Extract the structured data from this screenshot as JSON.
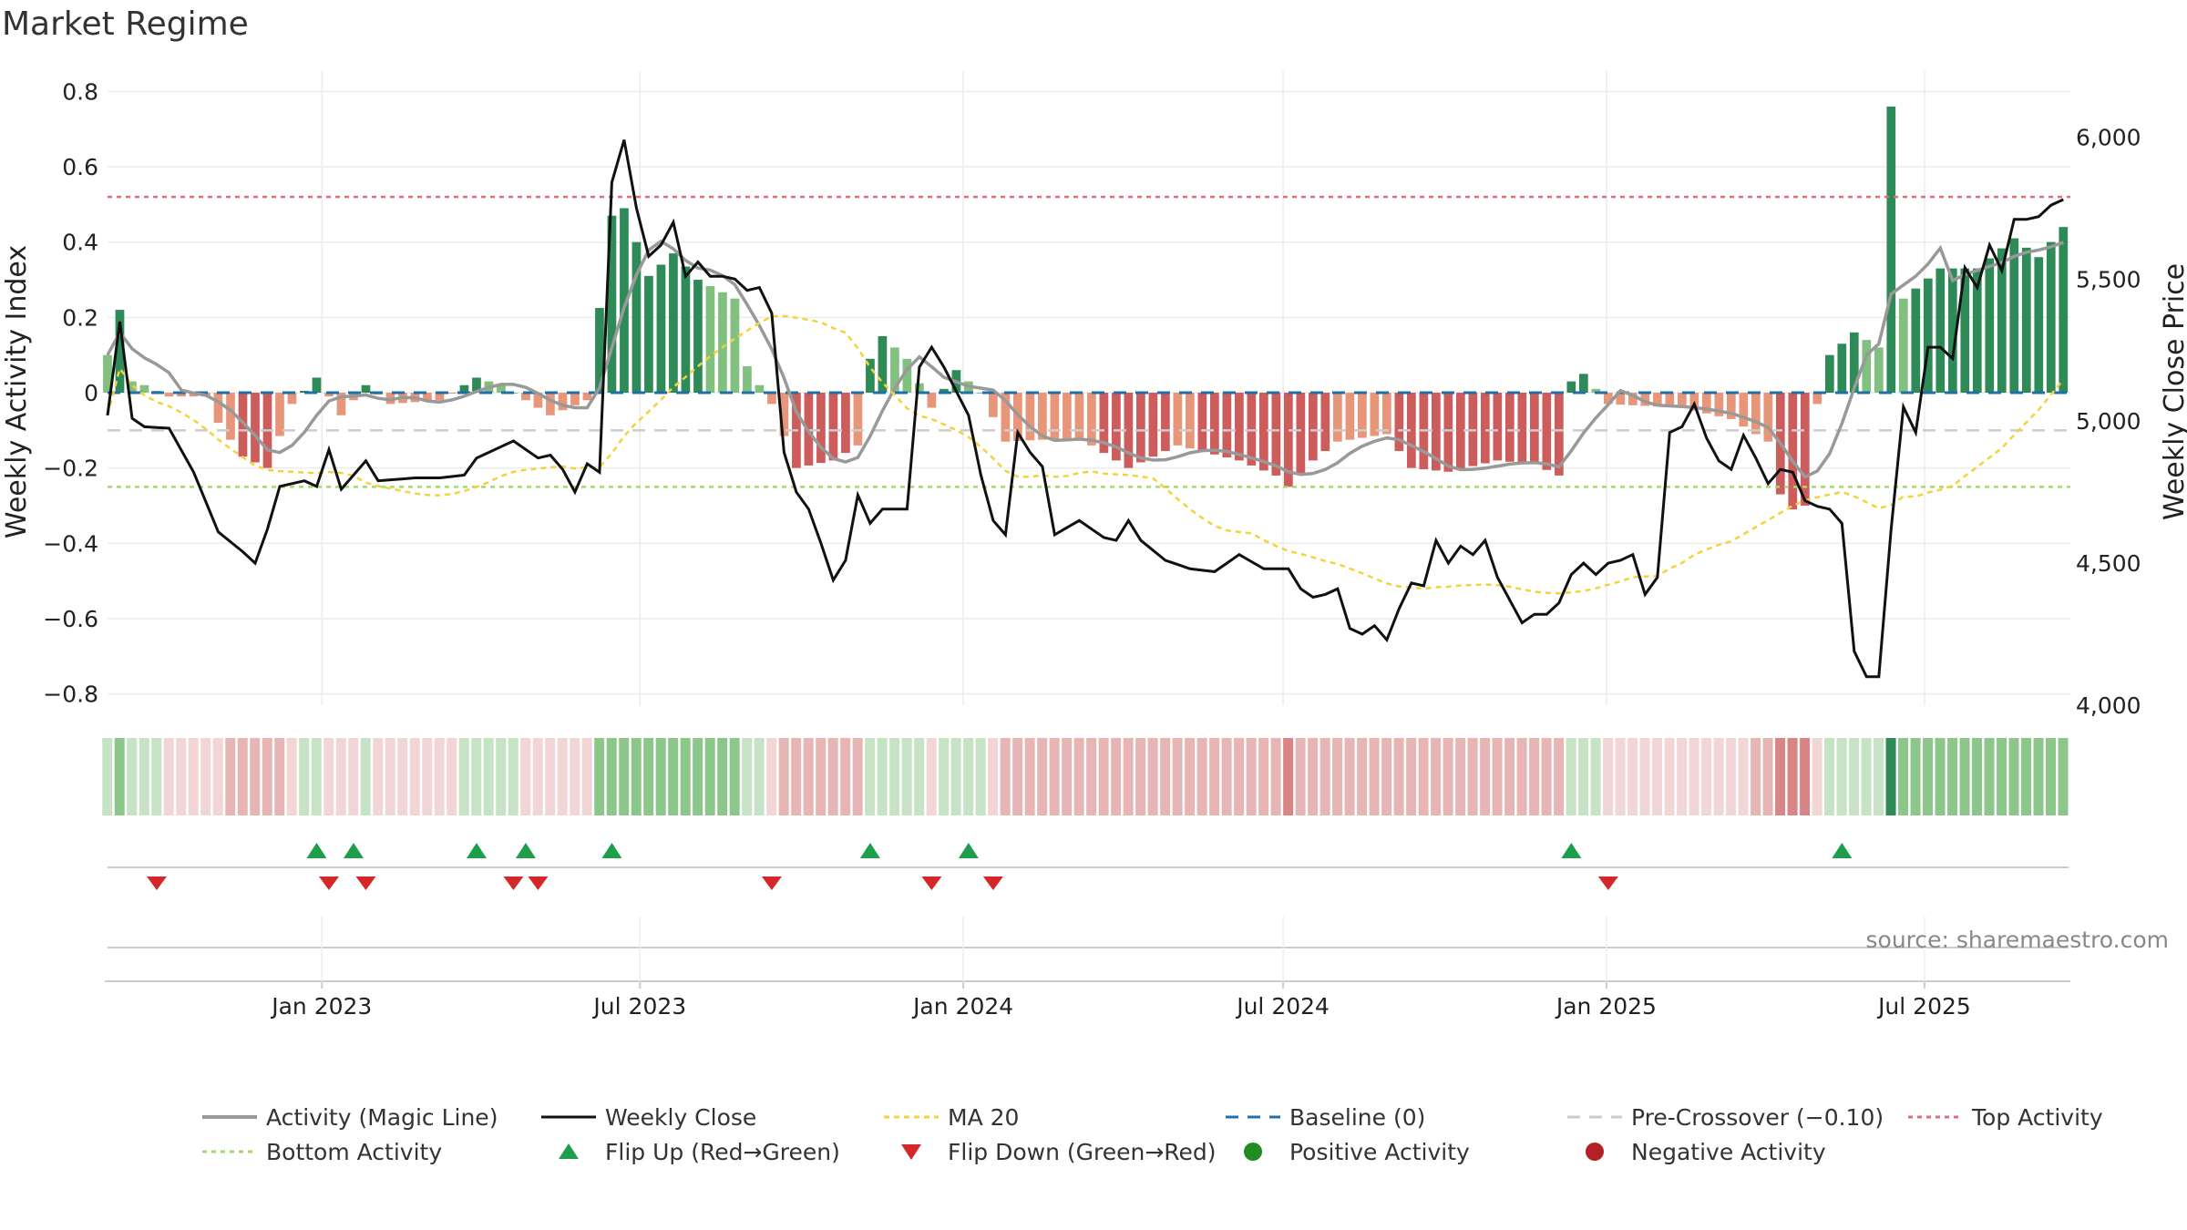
{
  "chart_data": {
    "type": "bar",
    "title": "Market Regime",
    "ylabel": "Weekly Activity Index",
    "y2label": "Weekly Close Price",
    "ylim": [
      -0.83,
      0.83
    ],
    "y2lim": [
      4000,
      6200
    ],
    "yticks": [
      -0.8,
      -0.6,
      -0.4,
      -0.2,
      0,
      0.2,
      0.4,
      0.6,
      0.8
    ],
    "ytick_labels": [
      "−0.8",
      "−0.6",
      "−0.4",
      "−0.2",
      "0",
      "0.2",
      "0.4",
      "0.6",
      "0.8"
    ],
    "y2ticks": [
      4000,
      4500,
      5000,
      5500,
      6000
    ],
    "y2tick_labels": [
      "4,000",
      "4,500",
      "5,000",
      "5,500",
      "6,000"
    ],
    "x_range": [
      "2022-09-01",
      "2025-09-22"
    ],
    "xticks": [
      "2023-01-01",
      "2023-07-01",
      "2024-01-01",
      "2024-07-01",
      "2025-01-01",
      "2025-07-01"
    ],
    "xtick_labels": [
      "Jan 2023",
      "Jul 2023",
      "Jan 2024",
      "Jul 2024",
      "Jan 2025",
      "Jul 2025"
    ],
    "grid": true,
    "legend_position": "bottom",
    "source_text": "source: sharemaestro.com",
    "colors": {
      "strong_green": "#2e8b57",
      "light_green": "#81c07e",
      "strong_red": "#cd5c5c",
      "light_red": "#e8967a",
      "magic_line": "#999999",
      "close": "#111111",
      "ma20": "#f2d43a",
      "baseline": "#1f6fa8",
      "pre_crossover": "#cccccc",
      "top_activity": "#e06c7f",
      "bottom_activity": "#a5d96a",
      "flip_up": "#1e9e4a",
      "flip_down": "#d62728",
      "positive": "#228b22",
      "negative": "#b22222"
    },
    "reference_lines": {
      "baseline": 0,
      "pre_crossover": -0.1,
      "top_activity": 0.52,
      "bottom_activity": -0.25
    },
    "activity_anchors": [
      [
        "2022-09-01",
        0.1
      ],
      [
        "2022-09-08",
        0.22
      ],
      [
        "2022-09-15",
        0.03
      ],
      [
        "2022-09-22",
        0.02
      ],
      [
        "2022-10-06",
        -0.01
      ],
      [
        "2022-10-27",
        -0.01
      ],
      [
        "2022-11-03",
        -0.08
      ],
      [
        "2022-11-17",
        -0.17
      ],
      [
        "2022-12-01",
        -0.2
      ],
      [
        "2022-12-15",
        -0.03
      ],
      [
        "2022-12-29",
        0.04
      ],
      [
        "2023-01-12",
        -0.06
      ],
      [
        "2023-01-26",
        0.02
      ],
      [
        "2023-02-09",
        -0.03
      ],
      [
        "2023-03-09",
        -0.02
      ],
      [
        "2023-03-30",
        0.04
      ],
      [
        "2023-04-13",
        0.02
      ],
      [
        "2023-05-11",
        -0.06
      ],
      [
        "2023-06-01",
        -0.02
      ],
      [
        "2023-06-15",
        0.47
      ],
      [
        "2023-06-22",
        0.49
      ],
      [
        "2023-07-06",
        0.31
      ],
      [
        "2023-07-20",
        0.37
      ],
      [
        "2023-08-03",
        0.3
      ],
      [
        "2023-08-24",
        0.25
      ],
      [
        "2023-08-31",
        0.07
      ],
      [
        "2023-09-14",
        -0.03
      ],
      [
        "2023-09-28",
        -0.2
      ],
      [
        "2023-10-19",
        -0.18
      ],
      [
        "2023-11-02",
        -0.14
      ],
      [
        "2023-11-09",
        0.09
      ],
      [
        "2023-11-16",
        0.15
      ],
      [
        "2023-11-30",
        0.09
      ],
      [
        "2023-12-14",
        -0.04
      ],
      [
        "2023-12-28",
        0.06
      ],
      [
        "2024-01-11",
        0.0
      ],
      [
        "2024-01-25",
        -0.13
      ],
      [
        "2024-03-07",
        -0.12
      ],
      [
        "2024-04-04",
        -0.2
      ],
      [
        "2024-05-02",
        -0.14
      ],
      [
        "2024-06-06",
        -0.18
      ],
      [
        "2024-06-27",
        -0.22
      ],
      [
        "2024-07-04",
        -0.25
      ],
      [
        "2024-07-18",
        -0.18
      ],
      [
        "2024-08-01",
        -0.13
      ],
      [
        "2024-08-29",
        -0.11
      ],
      [
        "2024-09-12",
        -0.2
      ],
      [
        "2024-10-03",
        -0.21
      ],
      [
        "2024-10-31",
        -0.18
      ],
      [
        "2024-11-21",
        -0.19
      ],
      [
        "2024-12-05",
        -0.22
      ],
      [
        "2024-12-12",
        0.03
      ],
      [
        "2024-12-19",
        0.05
      ],
      [
        "2025-01-02",
        -0.03
      ],
      [
        "2025-02-13",
        -0.04
      ],
      [
        "2025-03-13",
        -0.07
      ],
      [
        "2025-04-03",
        -0.13
      ],
      [
        "2025-04-10",
        -0.27
      ],
      [
        "2025-04-17",
        -0.31
      ],
      [
        "2025-04-24",
        -0.3
      ],
      [
        "2025-05-01",
        -0.03
      ],
      [
        "2025-05-08",
        0.1
      ],
      [
        "2025-05-22",
        0.16
      ],
      [
        "2025-06-05",
        0.12
      ],
      [
        "2025-06-12",
        0.76
      ],
      [
        "2025-06-19",
        0.25
      ],
      [
        "2025-07-10",
        0.33
      ],
      [
        "2025-07-31",
        0.33
      ],
      [
        "2025-08-21",
        0.41
      ],
      [
        "2025-09-04",
        0.36
      ],
      [
        "2025-09-18",
        0.44
      ]
    ],
    "close_anchors": [
      [
        "2022-09-01",
        5020
      ],
      [
        "2022-09-08",
        5350
      ],
      [
        "2022-09-15",
        5010
      ],
      [
        "2022-09-22",
        4980
      ],
      [
        "2022-10-06",
        4975
      ],
      [
        "2022-10-20",
        4820
      ],
      [
        "2022-11-03",
        4610
      ],
      [
        "2022-11-17",
        4540
      ],
      [
        "2022-11-24",
        4500
      ],
      [
        "2022-12-01",
        4620
      ],
      [
        "2022-12-08",
        4770
      ],
      [
        "2022-12-22",
        4790
      ],
      [
        "2022-12-29",
        4770
      ],
      [
        "2023-01-05",
        4900
      ],
      [
        "2023-01-12",
        4760
      ],
      [
        "2023-01-26",
        4860
      ],
      [
        "2023-02-02",
        4790
      ],
      [
        "2023-02-23",
        4800
      ],
      [
        "2023-03-09",
        4800
      ],
      [
        "2023-03-23",
        4810
      ],
      [
        "2023-03-30",
        4870
      ],
      [
        "2023-04-20",
        4930
      ],
      [
        "2023-05-04",
        4870
      ],
      [
        "2023-05-11",
        4880
      ],
      [
        "2023-05-18",
        4830
      ],
      [
        "2023-05-25",
        4750
      ],
      [
        "2023-06-01",
        4850
      ],
      [
        "2023-06-08",
        4820
      ],
      [
        "2023-06-15",
        5840
      ],
      [
        "2023-06-22",
        5990
      ],
      [
        "2023-06-29",
        5750
      ],
      [
        "2023-07-06",
        5580
      ],
      [
        "2023-07-13",
        5620
      ],
      [
        "2023-07-20",
        5700
      ],
      [
        "2023-07-27",
        5510
      ],
      [
        "2023-08-03",
        5560
      ],
      [
        "2023-08-10",
        5510
      ],
      [
        "2023-08-17",
        5510
      ],
      [
        "2023-08-24",
        5500
      ],
      [
        "2023-08-31",
        5460
      ],
      [
        "2023-09-07",
        5470
      ],
      [
        "2023-09-14",
        5380
      ],
      [
        "2023-09-21",
        4890
      ],
      [
        "2023-09-28",
        4750
      ],
      [
        "2023-10-05",
        4690
      ],
      [
        "2023-10-12",
        4570
      ],
      [
        "2023-10-19",
        4440
      ],
      [
        "2023-10-26",
        4510
      ],
      [
        "2023-11-02",
        4740
      ],
      [
        "2023-11-09",
        4640
      ],
      [
        "2023-11-16",
        4690
      ],
      [
        "2023-11-30",
        4690
      ],
      [
        "2023-12-07",
        5190
      ],
      [
        "2023-12-14",
        5260
      ],
      [
        "2023-12-21",
        5190
      ],
      [
        "2024-01-04",
        5020
      ],
      [
        "2024-01-11",
        4810
      ],
      [
        "2024-01-18",
        4650
      ],
      [
        "2024-01-25",
        4600
      ],
      [
        "2024-02-01",
        4960
      ],
      [
        "2024-02-08",
        4890
      ],
      [
        "2024-02-15",
        4840
      ],
      [
        "2024-02-22",
        4600
      ],
      [
        "2024-03-07",
        4650
      ],
      [
        "2024-03-21",
        4590
      ],
      [
        "2024-03-28",
        4580
      ],
      [
        "2024-04-04",
        4650
      ],
      [
        "2024-04-11",
        4580
      ],
      [
        "2024-04-25",
        4510
      ],
      [
        "2024-05-09",
        4480
      ],
      [
        "2024-05-23",
        4470
      ],
      [
        "2024-06-06",
        4530
      ],
      [
        "2024-06-20",
        4480
      ],
      [
        "2024-07-04",
        4480
      ],
      [
        "2024-07-11",
        4410
      ],
      [
        "2024-07-18",
        4380
      ],
      [
        "2024-07-25",
        4390
      ],
      [
        "2024-08-01",
        4410
      ],
      [
        "2024-08-08",
        4270
      ],
      [
        "2024-08-15",
        4250
      ],
      [
        "2024-08-22",
        4280
      ],
      [
        "2024-08-29",
        4230
      ],
      [
        "2024-09-05",
        4340
      ],
      [
        "2024-09-12",
        4430
      ],
      [
        "2024-09-19",
        4420
      ],
      [
        "2024-09-26",
        4580
      ],
      [
        "2024-10-03",
        4500
      ],
      [
        "2024-10-10",
        4560
      ],
      [
        "2024-10-17",
        4530
      ],
      [
        "2024-10-24",
        4580
      ],
      [
        "2024-10-31",
        4450
      ],
      [
        "2024-11-07",
        4370
      ],
      [
        "2024-11-14",
        4290
      ],
      [
        "2024-11-21",
        4320
      ],
      [
        "2024-11-28",
        4320
      ],
      [
        "2024-12-05",
        4360
      ],
      [
        "2024-12-12",
        4460
      ],
      [
        "2024-12-19",
        4500
      ],
      [
        "2024-12-26",
        4460
      ],
      [
        "2025-01-02",
        4500
      ],
      [
        "2025-01-09",
        4510
      ],
      [
        "2025-01-16",
        4530
      ],
      [
        "2025-01-23",
        4390
      ],
      [
        "2025-01-30",
        4450
      ],
      [
        "2025-02-06",
        4960
      ],
      [
        "2025-02-13",
        4980
      ],
      [
        "2025-02-20",
        5060
      ],
      [
        "2025-02-27",
        4940
      ],
      [
        "2025-03-06",
        4860
      ],
      [
        "2025-03-13",
        4830
      ],
      [
        "2025-03-20",
        4950
      ],
      [
        "2025-03-27",
        4870
      ],
      [
        "2025-04-03",
        4780
      ],
      [
        "2025-04-10",
        4830
      ],
      [
        "2025-04-17",
        4820
      ],
      [
        "2025-04-24",
        4720
      ],
      [
        "2025-05-01",
        4700
      ],
      [
        "2025-05-08",
        4690
      ],
      [
        "2025-05-15",
        4640
      ],
      [
        "2025-05-22",
        4190
      ],
      [
        "2025-05-29",
        4100
      ],
      [
        "2025-06-05",
        4100
      ],
      [
        "2025-06-12",
        4620
      ],
      [
        "2025-06-19",
        5050
      ],
      [
        "2025-06-26",
        4960
      ],
      [
        "2025-07-03",
        5260
      ],
      [
        "2025-07-10",
        5260
      ],
      [
        "2025-07-17",
        5220
      ],
      [
        "2025-07-24",
        5540
      ],
      [
        "2025-07-31",
        5470
      ],
      [
        "2025-08-07",
        5620
      ],
      [
        "2025-08-14",
        5530
      ],
      [
        "2025-08-21",
        5710
      ],
      [
        "2025-08-28",
        5710
      ],
      [
        "2025-09-04",
        5720
      ],
      [
        "2025-09-11",
        5760
      ],
      [
        "2025-09-18",
        5780
      ],
      [
        "2025-09-22",
        5870
      ]
    ],
    "flip_up_dates": [
      "2022-12-29",
      "2023-01-19",
      "2023-03-30",
      "2023-04-27",
      "2023-06-15",
      "2023-11-09",
      "2024-01-04",
      "2024-12-12",
      "2025-05-15"
    ],
    "flip_down_dates": [
      "2022-09-29",
      "2023-01-05",
      "2023-01-26",
      "2023-04-20",
      "2023-05-04",
      "2023-09-14",
      "2023-12-14",
      "2024-01-18",
      "2025-01-02"
    ],
    "legend": [
      {
        "key": "magic",
        "label": "Activity (Magic Line)"
      },
      {
        "key": "close",
        "label": "Weekly Close"
      },
      {
        "key": "ma20",
        "label": "MA 20"
      },
      {
        "key": "baseline",
        "label": "Baseline (0)"
      },
      {
        "key": "pre",
        "label": "Pre-Crossover (−0.10)"
      },
      {
        "key": "top",
        "label": "Top Activity"
      },
      {
        "key": "bottom",
        "label": "Bottom Activity"
      },
      {
        "key": "flipup",
        "label": "Flip Up (Red→Green)"
      },
      {
        "key": "flipdown",
        "label": "Flip Down (Green→Red)"
      },
      {
        "key": "pos",
        "label": "Positive Activity"
      },
      {
        "key": "neg",
        "label": "Negative Activity"
      }
    ]
  }
}
